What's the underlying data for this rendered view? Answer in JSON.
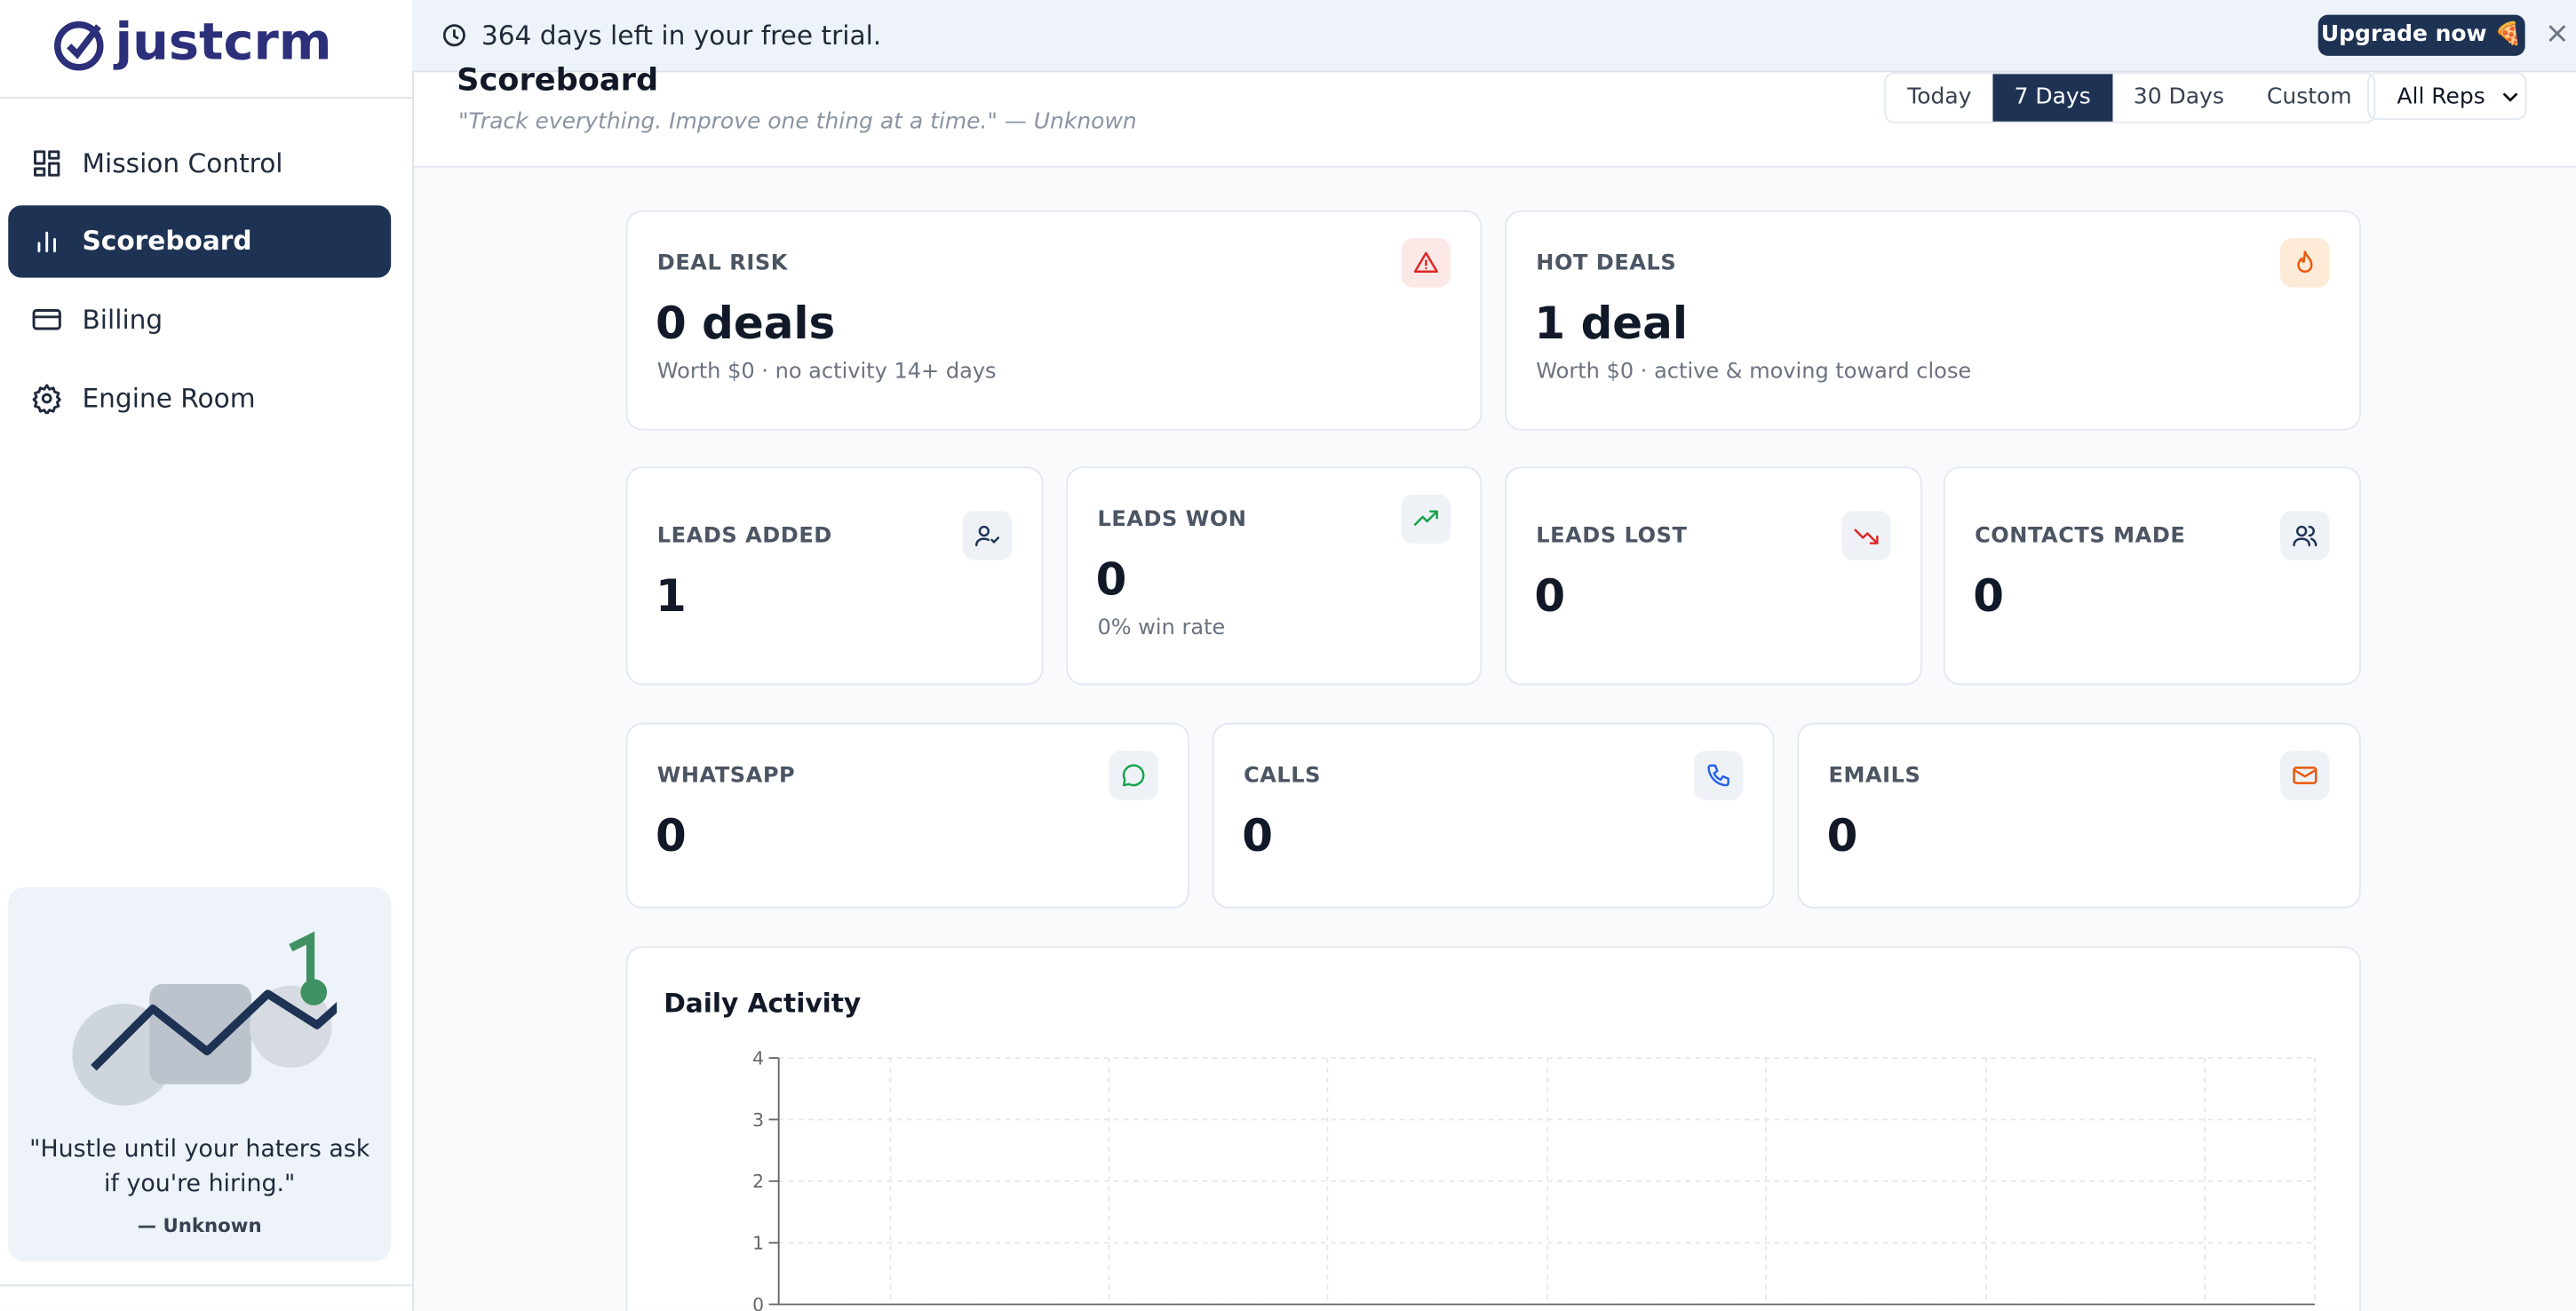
{
  "trial_banner": {
    "text": "364 days left in your free trial.",
    "button": "Upgrade now 🍕"
  },
  "sidebar": {
    "logo": "justcrm",
    "nav": [
      "Mission Control",
      "Scoreboard",
      "Billing",
      "Engine Room"
    ],
    "active": 1,
    "quote": "\"Hustle until your haters ask if you're hiring.\"",
    "quote_author": "— Unknown"
  },
  "header": {
    "title": "Scoreboard",
    "subtitle": "\"Track everything. Improve one thing at a time.\" — Unknown",
    "ranges": [
      "Today",
      "7 Days",
      "30 Days",
      "Custom"
    ],
    "active_range": 1,
    "rep_filter": "All Reps"
  },
  "cards": [
    {
      "label": "DEAL RISK",
      "value": "0 deals",
      "note": "Worth $0 · no activity 14+ days"
    },
    {
      "label": "HOT DEALS",
      "value": "1 deal",
      "note": "Worth $0 · active & moving toward close"
    },
    {
      "label": "LEADS ADDED",
      "value": 1
    },
    {
      "label": "LEADS WON",
      "value": 0,
      "note": "0% win rate"
    },
    {
      "label": "LEADS LOST",
      "value": 0
    },
    {
      "label": "CONTACTS MADE",
      "value": 0
    },
    {
      "label": "WHATSAPP",
      "value": 0
    },
    {
      "label": "CALLS",
      "value": 0
    },
    {
      "label": "EMAILS",
      "value": 0
    }
  ],
  "daily_activity": {
    "title": "Daily Activity",
    "ylim": [
      0,
      4
    ],
    "yticks": [
      0,
      1,
      2,
      3,
      4
    ],
    "grid": true
  }
}
